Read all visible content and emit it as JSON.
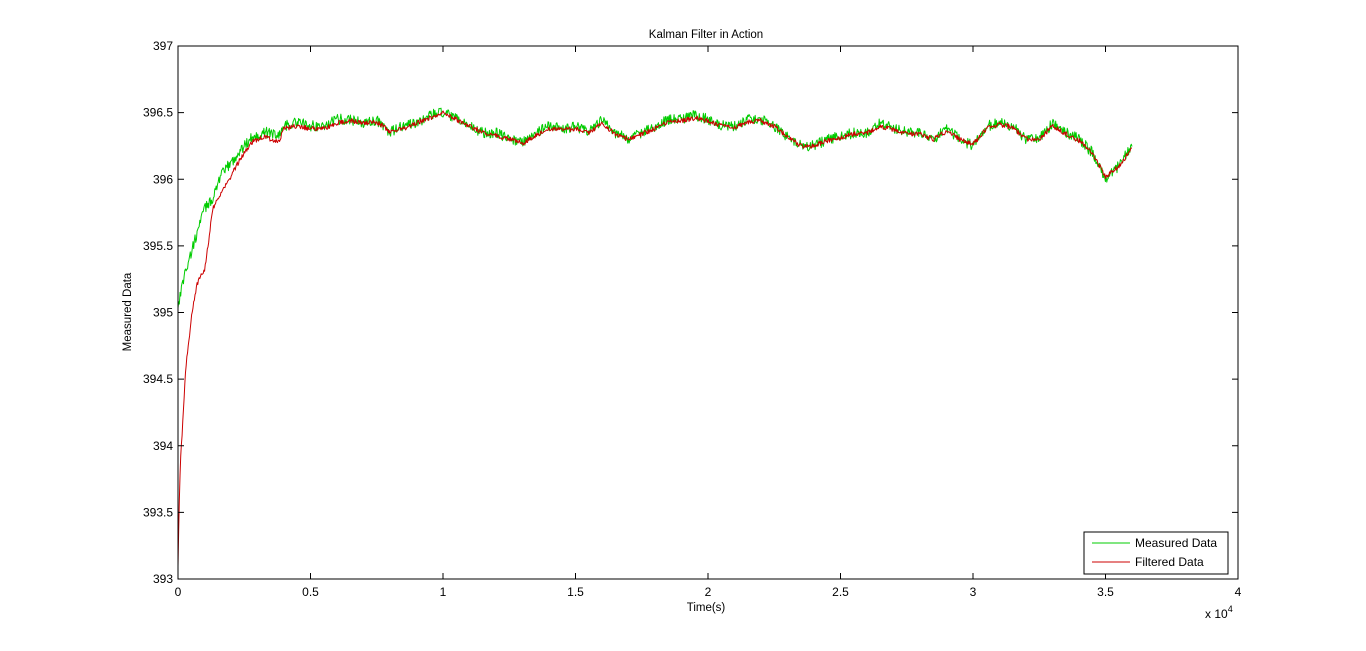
{
  "chart_data": {
    "type": "line",
    "title": "Kalman Filter in Action",
    "xlabel": "Time(s)",
    "ylabel": "Measured Data",
    "x_multiplier_base": "x 10",
    "x_multiplier_exp": "4",
    "xlim": [
      0,
      4
    ],
    "ylim": [
      393,
      397
    ],
    "xticks": [
      "0",
      "0.5",
      "1",
      "1.5",
      "2",
      "2.5",
      "3",
      "3.5",
      "4"
    ],
    "yticks": [
      "393",
      "393.5",
      "394",
      "394.5",
      "395",
      "395.5",
      "396",
      "396.5",
      "397"
    ],
    "x_unit_note": "x values in units of 10^4 s",
    "legend_position": "bottom-right",
    "grid": false,
    "series": [
      {
        "name": "Measured Data",
        "color": "#00cc00",
        "noise": 0.04,
        "x": [
          0,
          0.02,
          0.05,
          0.08,
          0.1,
          0.13,
          0.15,
          0.18,
          0.2,
          0.23,
          0.25,
          0.28,
          0.3,
          0.33,
          0.35,
          0.38,
          0.4,
          0.45,
          0.5,
          0.55,
          0.6,
          0.65,
          0.7,
          0.75,
          0.8,
          0.85,
          0.9,
          0.95,
          1.0,
          1.05,
          1.1,
          1.15,
          1.2,
          1.25,
          1.3,
          1.35,
          1.4,
          1.45,
          1.5,
          1.55,
          1.6,
          1.65,
          1.7,
          1.75,
          1.8,
          1.85,
          1.9,
          1.95,
          2.0,
          2.05,
          2.1,
          2.15,
          2.2,
          2.25,
          2.3,
          2.35,
          2.4,
          2.45,
          2.5,
          2.55,
          2.6,
          2.65,
          2.7,
          2.75,
          2.8,
          2.85,
          2.9,
          2.95,
          3.0,
          3.05,
          3.1,
          3.15,
          3.2,
          3.25,
          3.3,
          3.35,
          3.4,
          3.45,
          3.5,
          3.55,
          3.6
        ],
        "y": [
          395.05,
          395.25,
          395.45,
          395.65,
          395.78,
          395.85,
          395.98,
          396.08,
          396.12,
          396.2,
          396.25,
          396.32,
          396.33,
          396.35,
          396.35,
          396.33,
          396.4,
          396.43,
          396.4,
          396.4,
          396.45,
          396.45,
          396.42,
          396.44,
          396.35,
          396.4,
          396.42,
          396.48,
          396.5,
          396.45,
          396.4,
          396.35,
          396.35,
          396.3,
          396.28,
          396.35,
          396.4,
          396.38,
          396.4,
          396.35,
          396.45,
          396.35,
          396.3,
          396.35,
          396.4,
          396.45,
          396.45,
          396.48,
          396.45,
          396.4,
          396.4,
          396.45,
          396.45,
          396.4,
          396.32,
          396.25,
          396.25,
          396.3,
          396.32,
          396.35,
          396.35,
          396.42,
          396.38,
          396.35,
          396.35,
          396.3,
          396.38,
          396.3,
          396.25,
          396.4,
          396.42,
          396.4,
          396.3,
          396.3,
          396.42,
          396.35,
          396.3,
          396.2,
          396.0,
          396.1,
          396.25
        ]
      },
      {
        "name": "Filtered Data",
        "color": "#cc0000",
        "noise": 0.018,
        "x": [
          0,
          0.005,
          0.01,
          0.02,
          0.03,
          0.05,
          0.07,
          0.09,
          0.1,
          0.12,
          0.13,
          0.15,
          0.17,
          0.2,
          0.22,
          0.25,
          0.28,
          0.3,
          0.33,
          0.35,
          0.38,
          0.4,
          0.45,
          0.5,
          0.55,
          0.6,
          0.65,
          0.7,
          0.75,
          0.8,
          0.85,
          0.9,
          0.95,
          1.0,
          1.05,
          1.1,
          1.15,
          1.2,
          1.25,
          1.3,
          1.35,
          1.4,
          1.45,
          1.5,
          1.55,
          1.6,
          1.65,
          1.7,
          1.75,
          1.8,
          1.85,
          1.9,
          1.95,
          2.0,
          2.05,
          2.1,
          2.15,
          2.2,
          2.25,
          2.3,
          2.35,
          2.4,
          2.45,
          2.5,
          2.55,
          2.6,
          2.65,
          2.7,
          2.75,
          2.8,
          2.85,
          2.9,
          2.95,
          3.0,
          3.05,
          3.1,
          3.15,
          3.2,
          3.25,
          3.3,
          3.35,
          3.4,
          3.45,
          3.5,
          3.55,
          3.6
        ],
        "y": [
          393.1,
          393.6,
          393.9,
          394.25,
          394.6,
          394.95,
          395.2,
          395.3,
          395.32,
          395.6,
          395.78,
          395.85,
          395.92,
          396.02,
          396.1,
          396.2,
          396.28,
          396.3,
          396.32,
          396.3,
          396.28,
          396.38,
          396.4,
          396.38,
          396.38,
          396.42,
          396.44,
          396.42,
          396.43,
          396.36,
          396.38,
          396.42,
          396.46,
          396.5,
          396.45,
          396.4,
          396.35,
          396.33,
          396.3,
          396.27,
          396.33,
          396.38,
          396.37,
          396.38,
          396.35,
          396.42,
          396.34,
          396.3,
          396.34,
          396.38,
          396.43,
          396.44,
          396.46,
          396.44,
          396.4,
          396.39,
          396.43,
          396.44,
          396.4,
          396.32,
          396.25,
          396.25,
          396.29,
          396.31,
          396.34,
          396.35,
          396.4,
          396.37,
          396.34,
          396.34,
          396.3,
          396.36,
          396.3,
          396.26,
          396.38,
          396.41,
          396.39,
          396.3,
          396.3,
          396.4,
          396.34,
          396.29,
          396.2,
          396.02,
          396.1,
          396.23
        ]
      }
    ]
  }
}
